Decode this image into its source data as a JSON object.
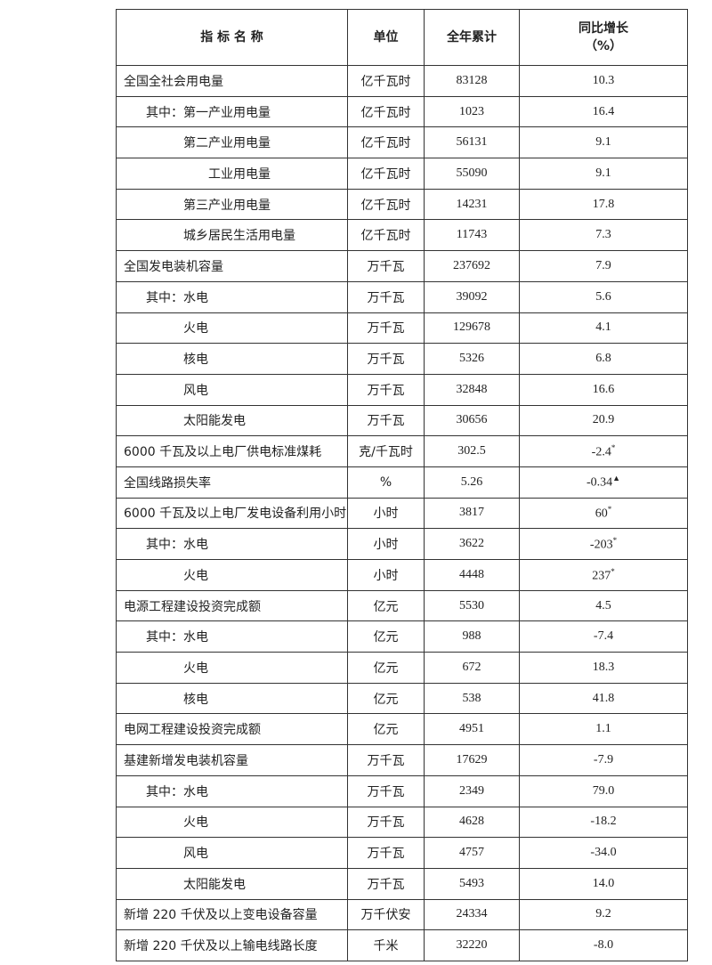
{
  "table": {
    "header": [
      "指 标 名 称",
      "单位",
      "全年累计",
      [
        "同比增长",
        "（%）"
      ]
    ],
    "rows": [
      {
        "name": "全国全社会用电量",
        "unit": "亿千瓦时",
        "total": "83128",
        "growth": "10.3"
      },
      {
        "name": "其中：第一产业用电量",
        "unit": "亿千瓦时",
        "total": "1023",
        "growth": "16.4"
      },
      {
        "name": "第二产业用电量",
        "unit": "亿千瓦时",
        "total": "56131",
        "growth": "9.1"
      },
      {
        "name": "工业用电量",
        "unit": "亿千瓦时",
        "total": "55090",
        "growth": "9.1"
      },
      {
        "name": "第三产业用电量",
        "unit": "亿千瓦时",
        "total": "14231",
        "growth": "17.8"
      },
      {
        "name": "城乡居民生活用电量",
        "unit": "亿千瓦时",
        "total": "11743",
        "growth": "7.3"
      },
      {
        "name": "全国发电装机容量",
        "unit": "万千瓦",
        "total": "237692",
        "growth": "7.9"
      },
      {
        "name": "其中：水电",
        "unit": "万千瓦",
        "total": "39092",
        "growth": "5.6"
      },
      {
        "name": "火电",
        "unit": "万千瓦",
        "total": "129678",
        "growth": "4.1"
      },
      {
        "name": "核电",
        "unit": "万千瓦",
        "total": "5326",
        "growth": "6.8"
      },
      {
        "name": "风电",
        "unit": "万千瓦",
        "total": "32848",
        "growth": "16.6"
      },
      {
        "name": "太阳能发电",
        "unit": "万千瓦",
        "total": "30656",
        "growth": "20.9"
      },
      {
        "name": "6000 千瓦及以上电厂供电标准煤耗",
        "unit": "克/千瓦时",
        "total": "302.5",
        "growth": "-2.4",
        "note": "*"
      },
      {
        "name": "全国线路损失率",
        "unit": "%",
        "total": "5.26",
        "growth": "-0.34",
        "note": "▲"
      },
      {
        "name": "6000 千瓦及以上电厂发电设备利用小时",
        "unit": "小时",
        "total": "3817",
        "growth": "60",
        "note": "*"
      },
      {
        "name": "其中：水电",
        "unit": "小时",
        "total": "3622",
        "growth": "-203",
        "note": "*"
      },
      {
        "name": "火电",
        "unit": "小时",
        "total": "4448",
        "growth": "237",
        "note": "*"
      },
      {
        "name": "电源工程建设投资完成额",
        "unit": "亿元",
        "total": "5530",
        "growth": "4.5"
      },
      {
        "name": "其中：水电",
        "unit": "亿元",
        "total": "988",
        "growth": "-7.4"
      },
      {
        "name": "火电",
        "unit": "亿元",
        "total": "672",
        "growth": "18.3"
      },
      {
        "name": "核电",
        "unit": "亿元",
        "total": "538",
        "growth": "41.8"
      },
      {
        "name": "电网工程建设投资完成额",
        "unit": "亿元",
        "total": "4951",
        "growth": "1.1"
      },
      {
        "name": "基建新增发电装机容量",
        "unit": "万千瓦",
        "total": "17629",
        "growth": "-7.9"
      },
      {
        "name": "其中：水电",
        "unit": "万千瓦",
        "total": "2349",
        "growth": "79.0"
      },
      {
        "name": "火电",
        "unit": "万千瓦",
        "total": "4628",
        "growth": "-18.2"
      },
      {
        "name": "风电",
        "unit": "万千瓦",
        "total": "4757",
        "growth": "-34.0"
      },
      {
        "name": "太阳能发电",
        "unit": "万千瓦",
        "total": "5493",
        "growth": "14.0"
      },
      {
        "name": "新增 220 千伏及以上变电设备容量",
        "unit": "万千伏安",
        "total": "24334",
        "growth": "9.2"
      },
      {
        "name": "新增 220 千伏及以上输电线路长度",
        "unit": "千米",
        "total": "32220",
        "growth": "-8.0"
      }
    ]
  }
}
